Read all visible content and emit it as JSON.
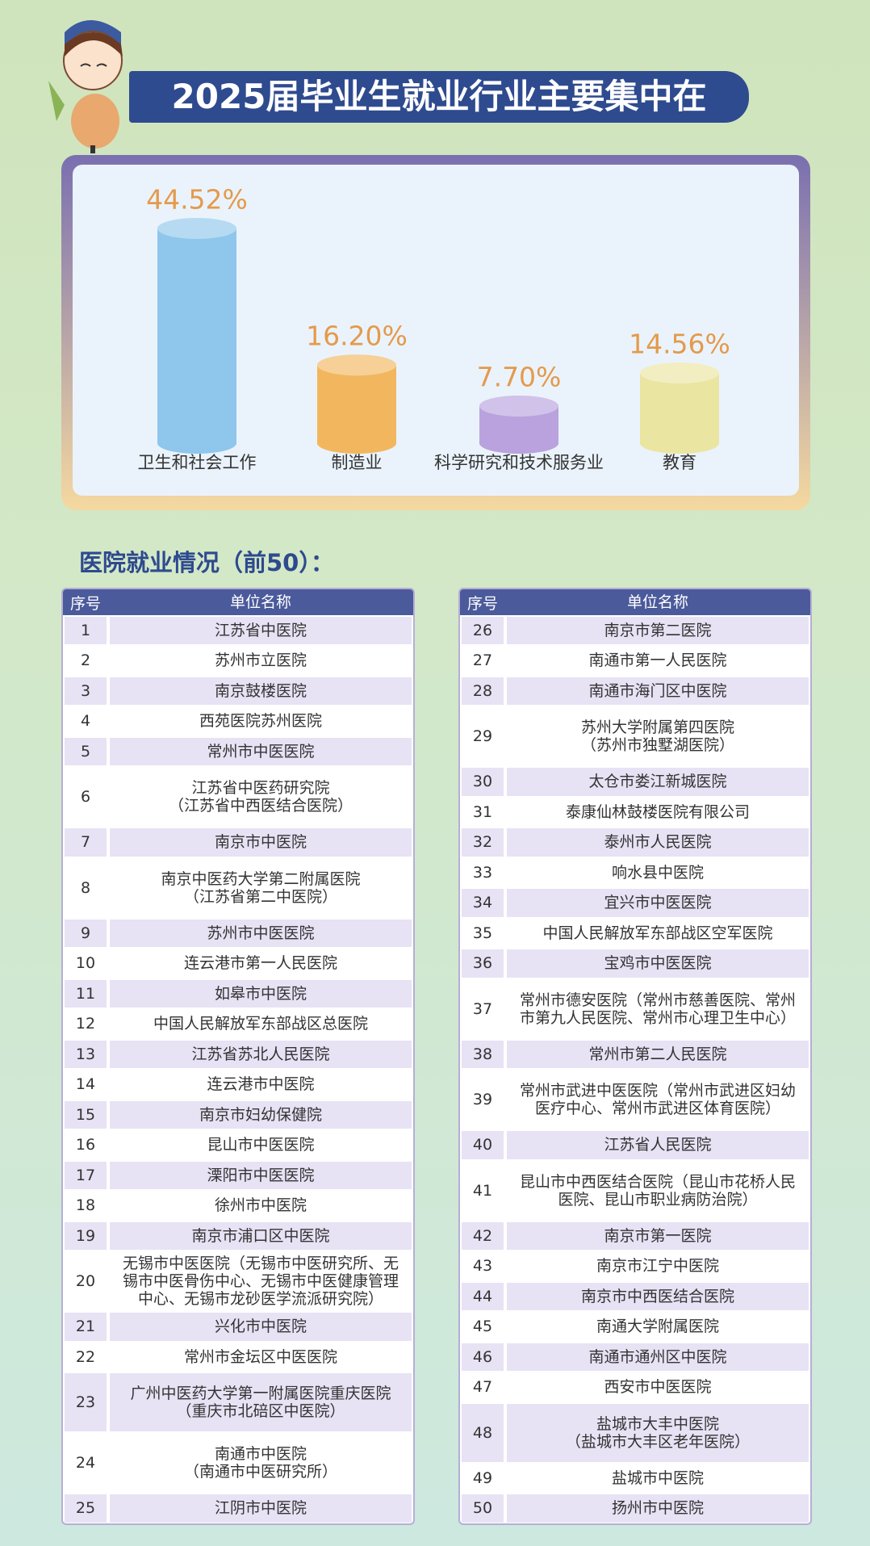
{
  "title": "2025届毕业生就业行业主要集中在",
  "chart_data": {
    "type": "bar",
    "categories": [
      "卫生和社会工作",
      "制造业",
      "科学研究和技术服务业",
      "教育"
    ],
    "values": [
      44.52,
      16.2,
      7.7,
      14.56
    ],
    "value_labels": [
      "44.52%",
      "16.20%",
      "7.70%",
      "14.56%"
    ],
    "colors": [
      "#8fc6ec",
      "#f2b75e",
      "#b9a2dd",
      "#ebe5a2"
    ]
  },
  "section_title": "医院就业情况（前50）：",
  "tables": [
    {
      "header": [
        "序号",
        "单位名称"
      ],
      "rows": [
        [
          1,
          "江苏省中医院"
        ],
        [
          2,
          "苏州市立医院"
        ],
        [
          3,
          "南京鼓楼医院"
        ],
        [
          4,
          "西苑医院苏州医院"
        ],
        [
          5,
          "常州市中医医院"
        ],
        [
          6,
          "江苏省中医药研究院\n（江苏省中西医结合医院）"
        ],
        [
          7,
          "南京市中医院"
        ],
        [
          8,
          "南京中医药大学第二附属医院\n（江苏省第二中医院）"
        ],
        [
          9,
          "苏州市中医医院"
        ],
        [
          10,
          "连云港市第一人民医院"
        ],
        [
          11,
          "如皋市中医院"
        ],
        [
          12,
          "中国人民解放军东部战区总医院"
        ],
        [
          13,
          "江苏省苏北人民医院"
        ],
        [
          14,
          "连云港市中医院"
        ],
        [
          15,
          "南京市妇幼保健院"
        ],
        [
          16,
          "昆山市中医医院"
        ],
        [
          17,
          "溧阳市中医医院"
        ],
        [
          18,
          "徐州市中医院"
        ],
        [
          19,
          "南京市浦口区中医院"
        ],
        [
          20,
          "无锡市中医医院（无锡市中医研究所、无锡市中医骨伤中心、无锡市中医健康管理中心、无锡市龙砂医学流派研究院）"
        ],
        [
          21,
          "兴化市中医院"
        ],
        [
          22,
          "常州市金坛区中医医院"
        ],
        [
          23,
          "广州中医药大学第一附属医院重庆医院\n（重庆市北碚区中医院）"
        ],
        [
          24,
          "南通市中医院\n（南通市中医研究所）"
        ],
        [
          25,
          "江阴市中医院"
        ]
      ]
    },
    {
      "header": [
        "序号",
        "单位名称"
      ],
      "rows": [
        [
          26,
          "南京市第二医院"
        ],
        [
          27,
          "南通市第一人民医院"
        ],
        [
          28,
          "南通市海门区中医院"
        ],
        [
          29,
          "苏州大学附属第四医院\n（苏州市独墅湖医院）"
        ],
        [
          30,
          "太仓市娄江新城医院"
        ],
        [
          31,
          "泰康仙林鼓楼医院有限公司"
        ],
        [
          32,
          "泰州市人民医院"
        ],
        [
          33,
          "响水县中医院"
        ],
        [
          34,
          "宜兴市中医医院"
        ],
        [
          35,
          "中国人民解放军东部战区空军医院"
        ],
        [
          36,
          "宝鸡市中医医院"
        ],
        [
          37,
          "常州市德安医院（常州市慈善医院、常州市第九人民医院、常州市心理卫生中心）"
        ],
        [
          38,
          "常州市第二人民医院"
        ],
        [
          39,
          "常州市武进中医医院（常州市武进区妇幼医疗中心、常州市武进区体育医院）"
        ],
        [
          40,
          "江苏省人民医院"
        ],
        [
          41,
          "昆山市中西医结合医院（昆山市花桥人民医院、昆山市职业病防治院）"
        ],
        [
          42,
          "南京市第一医院"
        ],
        [
          43,
          "南京市江宁中医院"
        ],
        [
          44,
          "南京市中西医结合医院"
        ],
        [
          45,
          "南通大学附属医院"
        ],
        [
          46,
          "南通市通州区中医院"
        ],
        [
          47,
          "西安市中医医院"
        ],
        [
          48,
          "盐城市大丰中医院\n（盐城市大丰区老年医院）"
        ],
        [
          49,
          "盐城市中医院"
        ],
        [
          50,
          "扬州市中医院"
        ]
      ]
    }
  ]
}
